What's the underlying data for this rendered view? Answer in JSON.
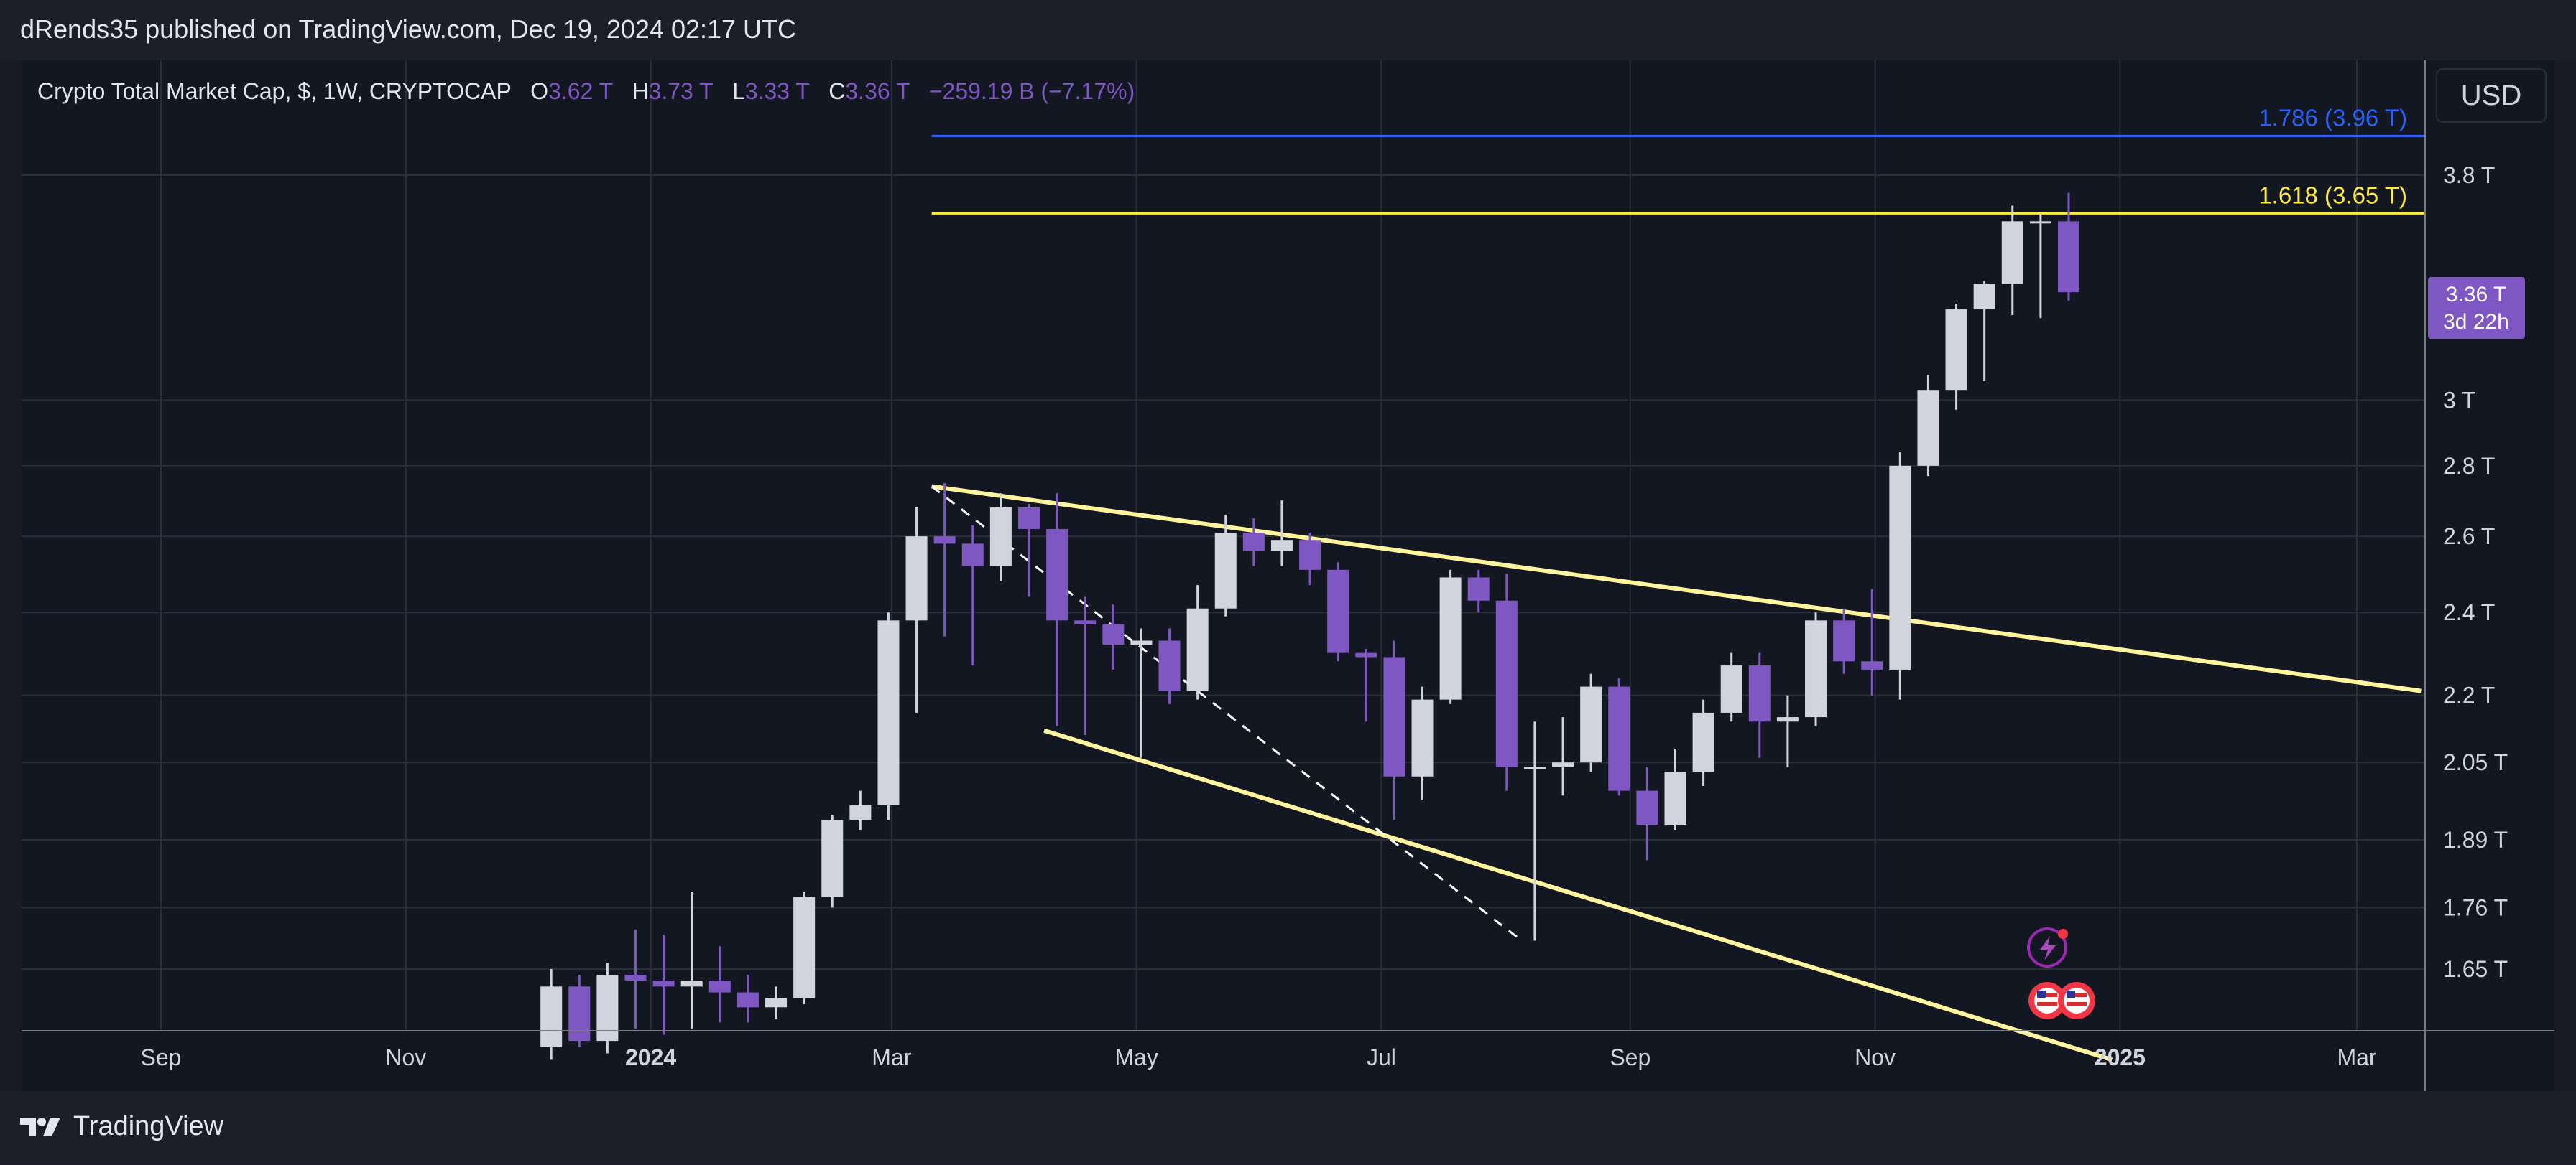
{
  "header": {
    "published": "dRends35 published on TradingView.com, Dec 19, 2024 02:17 UTC"
  },
  "footer": {
    "brand": "TradingView"
  },
  "currency_button": "USD",
  "colors": {
    "bull": "#d1d4dc",
    "bear": "#7e57c2",
    "fib_1786": "#2962ff",
    "fib_1618": "#ffeb3b",
    "trendline": "#fff59d",
    "grid": "#2a2e39",
    "background": "#131722"
  },
  "legend": {
    "symbol": "Crypto Total Market Cap, $, 1W, CRYPTOCAP",
    "o_label": "O",
    "o": "3.62 T",
    "h_label": "H",
    "h": "3.73 T",
    "l_label": "L",
    "l": "3.33 T",
    "c_label": "C",
    "c": "3.36 T",
    "change": "−259.19 B (−7.17%)"
  },
  "price_badge": {
    "price": "3.36 T",
    "countdown": "3d 22h"
  },
  "chart_data": {
    "type": "candlestick",
    "interval": "1W",
    "y_scale": "log",
    "y_tick_labels": [
      "3.8 T",
      "3 T",
      "2.8 T",
      "2.6 T",
      "2.4 T",
      "2.2 T",
      "2.05 T",
      "1.89 T",
      "1.76 T",
      "1.65 T"
    ],
    "y_ticks": [
      3.8,
      3.0,
      2.8,
      2.6,
      2.4,
      2.2,
      2.05,
      1.89,
      1.76,
      1.65
    ],
    "x_tick_labels": [
      "Sep",
      "Nov",
      "2024",
      "Mar",
      "May",
      "Jul",
      "Sep",
      "Nov",
      "2025",
      "Mar"
    ],
    "x_ticks": [
      "2023-09-01",
      "2023-11-01",
      "2024-01-01",
      "2024-03-01",
      "2024-05-01",
      "2024-07-01",
      "2024-09-01",
      "2024-11-01",
      "2025-01-01",
      "2025-03-01"
    ],
    "ylim": [
      1.5,
      4.3
    ],
    "candles": [
      {
        "t": "2023-12-04",
        "o": 1.52,
        "h": 1.65,
        "l": 1.5,
        "c": 1.62
      },
      {
        "t": "2023-12-11",
        "o": 1.62,
        "h": 1.64,
        "l": 1.52,
        "c": 1.53
      },
      {
        "t": "2023-12-18",
        "o": 1.53,
        "h": 1.66,
        "l": 1.51,
        "c": 1.64
      },
      {
        "t": "2023-12-25",
        "o": 1.64,
        "h": 1.72,
        "l": 1.55,
        "c": 1.63
      },
      {
        "t": "2024-01-01",
        "o": 1.63,
        "h": 1.71,
        "l": 1.54,
        "c": 1.62
      },
      {
        "t": "2024-01-08",
        "o": 1.62,
        "h": 1.79,
        "l": 1.55,
        "c": 1.63
      },
      {
        "t": "2024-01-15",
        "o": 1.63,
        "h": 1.69,
        "l": 1.56,
        "c": 1.61
      },
      {
        "t": "2024-01-22",
        "o": 1.61,
        "h": 1.64,
        "l": 1.56,
        "c": 1.585
      },
      {
        "t": "2024-01-29",
        "o": 1.585,
        "h": 1.62,
        "l": 1.565,
        "c": 1.6
      },
      {
        "t": "2024-02-05",
        "o": 1.6,
        "h": 1.79,
        "l": 1.59,
        "c": 1.78
      },
      {
        "t": "2024-02-12",
        "o": 1.78,
        "h": 1.94,
        "l": 1.76,
        "c": 1.93
      },
      {
        "t": "2024-02-19",
        "o": 1.93,
        "h": 1.99,
        "l": 1.91,
        "c": 1.96
      },
      {
        "t": "2024-02-26",
        "o": 1.96,
        "h": 2.4,
        "l": 1.93,
        "c": 2.38
      },
      {
        "t": "2024-03-04",
        "o": 2.38,
        "h": 2.68,
        "l": 2.16,
        "c": 2.6
      },
      {
        "t": "2024-03-11",
        "o": 2.6,
        "h": 2.75,
        "l": 2.34,
        "c": 2.58
      },
      {
        "t": "2024-03-18",
        "o": 2.58,
        "h": 2.63,
        "l": 2.27,
        "c": 2.52
      },
      {
        "t": "2024-03-25",
        "o": 2.52,
        "h": 2.72,
        "l": 2.48,
        "c": 2.68
      },
      {
        "t": "2024-04-01",
        "o": 2.68,
        "h": 2.69,
        "l": 2.44,
        "c": 2.62
      },
      {
        "t": "2024-04-08",
        "o": 2.62,
        "h": 2.72,
        "l": 2.13,
        "c": 2.38
      },
      {
        "t": "2024-04-15",
        "o": 2.38,
        "h": 2.44,
        "l": 2.11,
        "c": 2.37
      },
      {
        "t": "2024-04-22",
        "o": 2.37,
        "h": 2.42,
        "l": 2.26,
        "c": 2.32
      },
      {
        "t": "2024-04-29",
        "o": 2.32,
        "h": 2.36,
        "l": 2.06,
        "c": 2.33
      },
      {
        "t": "2024-05-06",
        "o": 2.33,
        "h": 2.36,
        "l": 2.18,
        "c": 2.21
      },
      {
        "t": "2024-05-13",
        "o": 2.21,
        "h": 2.47,
        "l": 2.19,
        "c": 2.41
      },
      {
        "t": "2024-05-20",
        "o": 2.41,
        "h": 2.66,
        "l": 2.39,
        "c": 2.61
      },
      {
        "t": "2024-05-27",
        "o": 2.61,
        "h": 2.65,
        "l": 2.52,
        "c": 2.56
      },
      {
        "t": "2024-06-03",
        "o": 2.56,
        "h": 2.7,
        "l": 2.52,
        "c": 2.59
      },
      {
        "t": "2024-06-10",
        "o": 2.59,
        "h": 2.61,
        "l": 2.47,
        "c": 2.51
      },
      {
        "t": "2024-06-17",
        "o": 2.51,
        "h": 2.53,
        "l": 2.28,
        "c": 2.3
      },
      {
        "t": "2024-06-24",
        "o": 2.3,
        "h": 2.31,
        "l": 2.14,
        "c": 2.29
      },
      {
        "t": "2024-07-01",
        "o": 2.29,
        "h": 2.33,
        "l": 1.93,
        "c": 2.02
      },
      {
        "t": "2024-07-08",
        "o": 2.02,
        "h": 2.22,
        "l": 1.97,
        "c": 2.19
      },
      {
        "t": "2024-07-15",
        "o": 2.19,
        "h": 2.51,
        "l": 2.18,
        "c": 2.49
      },
      {
        "t": "2024-07-22",
        "o": 2.49,
        "h": 2.51,
        "l": 2.4,
        "c": 2.43
      },
      {
        "t": "2024-07-29",
        "o": 2.43,
        "h": 2.5,
        "l": 1.99,
        "c": 2.04
      },
      {
        "t": "2024-08-05",
        "o": 2.04,
        "h": 2.14,
        "l": 1.7,
        "c": 2.04
      },
      {
        "t": "2024-08-12",
        "o": 2.04,
        "h": 2.15,
        "l": 1.98,
        "c": 2.05
      },
      {
        "t": "2024-08-19",
        "o": 2.05,
        "h": 2.25,
        "l": 2.03,
        "c": 2.22
      },
      {
        "t": "2024-08-26",
        "o": 2.22,
        "h": 2.24,
        "l": 1.98,
        "c": 1.99
      },
      {
        "t": "2024-09-02",
        "o": 1.99,
        "h": 2.04,
        "l": 1.85,
        "c": 1.92
      },
      {
        "t": "2024-09-09",
        "o": 1.92,
        "h": 2.08,
        "l": 1.91,
        "c": 2.03
      },
      {
        "t": "2024-09-16",
        "o": 2.03,
        "h": 2.19,
        "l": 2.0,
        "c": 2.16
      },
      {
        "t": "2024-09-23",
        "o": 2.16,
        "h": 2.3,
        "l": 2.14,
        "c": 2.27
      },
      {
        "t": "2024-09-30",
        "o": 2.27,
        "h": 2.3,
        "l": 2.06,
        "c": 2.14
      },
      {
        "t": "2024-10-07",
        "o": 2.14,
        "h": 2.2,
        "l": 2.04,
        "c": 2.15
      },
      {
        "t": "2024-10-14",
        "o": 2.15,
        "h": 2.4,
        "l": 2.13,
        "c": 2.38
      },
      {
        "t": "2024-10-21",
        "o": 2.38,
        "h": 2.41,
        "l": 2.25,
        "c": 2.28
      },
      {
        "t": "2024-10-28",
        "o": 2.28,
        "h": 2.46,
        "l": 2.2,
        "c": 2.26
      },
      {
        "t": "2024-11-04",
        "o": 2.26,
        "h": 2.84,
        "l": 2.19,
        "c": 2.8
      },
      {
        "t": "2024-11-11",
        "o": 2.8,
        "h": 3.08,
        "l": 2.77,
        "c": 3.03
      },
      {
        "t": "2024-11-18",
        "o": 3.03,
        "h": 3.32,
        "l": 2.97,
        "c": 3.3
      },
      {
        "t": "2024-11-25",
        "o": 3.3,
        "h": 3.4,
        "l": 3.06,
        "c": 3.39
      },
      {
        "t": "2024-12-02",
        "o": 3.39,
        "h": 3.68,
        "l": 3.28,
        "c": 3.62
      },
      {
        "t": "2024-12-09",
        "o": 3.62,
        "h": 3.65,
        "l": 3.27,
        "c": 3.62
      },
      {
        "t": "2024-12-16",
        "o": 3.62,
        "h": 3.73,
        "l": 3.33,
        "c": 3.36
      }
    ],
    "fib_levels": [
      {
        "label": "1.786 (3.96 T)",
        "value": 3.96
      },
      {
        "label": "1.618 (3.65 T)",
        "value": 3.65
      }
    ],
    "trendlines": [
      {
        "style": "solid",
        "from": {
          "t": "2024-03-11",
          "v": 2.74
        },
        "to": {
          "t": "2025-03-17",
          "v": 2.21
        }
      },
      {
        "style": "solid",
        "from": {
          "t": "2024-04-08",
          "v": 2.12
        },
        "to": {
          "t": "2024-12-30",
          "v": 1.5
        }
      },
      {
        "style": "dashed",
        "from": {
          "t": "2024-03-11",
          "v": 2.74
        },
        "to": {
          "t": "2024-08-05",
          "v": 1.7
        }
      }
    ]
  }
}
